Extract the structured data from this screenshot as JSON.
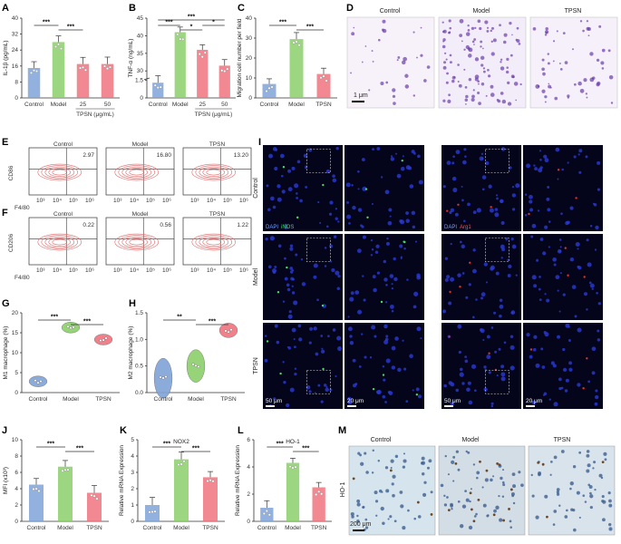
{
  "colors": {
    "blue": "#7fa3d8",
    "green": "#8ccf6a",
    "red": "#f0737e",
    "dark": "#1a1a1a"
  },
  "panels": {
    "A": "A",
    "B": "B",
    "C": "C",
    "D": "D",
    "E": "E",
    "F": "F",
    "G": "G",
    "H": "H",
    "I": "I",
    "J": "J",
    "K": "K",
    "L": "L",
    "M": "M"
  },
  "chart_data": [
    {
      "id": "A",
      "type": "bar",
      "ylabel": "IL-1β (pg/mL)",
      "ylim": [
        0,
        40
      ],
      "yticks": [
        "0",
        "8",
        "16",
        "24",
        "32",
        "40"
      ],
      "categories": [
        "Control",
        "Model",
        "25",
        "50"
      ],
      "values": [
        15,
        28,
        17,
        17
      ],
      "xgroup_label": "TPSN (μg/mL)",
      "sig": [
        "***",
        "***"
      ]
    },
    {
      "id": "B",
      "type": "bar",
      "ylabel": "TNF-α (ng/mL)",
      "yticks": [
        "0",
        "1.5",
        "30",
        "35",
        "40",
        "45"
      ],
      "categories": [
        "Control",
        "Model",
        "25",
        "50"
      ],
      "values": [
        1.3,
        41,
        36,
        31.5
      ],
      "xgroup_label": "TPSN (μg/mL)",
      "sig": [
        "***",
        "*",
        "*",
        "***"
      ]
    },
    {
      "id": "C",
      "type": "bar",
      "ylabel": "Migration cell number per field",
      "ylim": [
        0,
        40
      ],
      "yticks": [
        "0",
        "10",
        "20",
        "30",
        "40"
      ],
      "categories": [
        "Control",
        "Model",
        "TPSN"
      ],
      "values": [
        7,
        29.5,
        12
      ],
      "sig": [
        "***",
        "***"
      ]
    },
    {
      "id": "G",
      "type": "violin",
      "ylabel": "M1 macrophage (%)",
      "ylim": [
        0,
        20
      ],
      "yticks": [
        "0",
        "5",
        "10",
        "15",
        "20"
      ],
      "categories": [
        "Control",
        "Model",
        "TPSN"
      ],
      "values": [
        2.8,
        16.3,
        13.3
      ],
      "sig": [
        "***",
        "***"
      ]
    },
    {
      "id": "H",
      "type": "violin",
      "ylabel": "M2 macrophage (%)",
      "ylim": [
        0,
        1.5
      ],
      "yticks": [
        "0.0",
        "0.5",
        "1.0",
        "1.5"
      ],
      "categories": [
        "Control",
        "Model",
        "TPSN"
      ],
      "values": [
        0.27,
        0.5,
        1.17
      ],
      "sig": [
        "**",
        "***"
      ]
    },
    {
      "id": "J",
      "type": "bar",
      "ylabel": "MFI (x10³)",
      "ylim": [
        0,
        10
      ],
      "yticks": [
        "0",
        "2",
        "4",
        "6",
        "8",
        "10"
      ],
      "categories": [
        "Control",
        "Model",
        "TPSN"
      ],
      "values": [
        4.5,
        6.7,
        3.5
      ],
      "sig": [
        "***",
        "***"
      ]
    },
    {
      "id": "K",
      "type": "bar",
      "title": "NOX2",
      "ylabel": "Relative mRNA Expression",
      "ylim": [
        0,
        5
      ],
      "yticks": [
        "0",
        "1",
        "2",
        "3",
        "4",
        "5"
      ],
      "categories": [
        "Control",
        "Model",
        "TPSN"
      ],
      "values": [
        1.0,
        3.8,
        2.7
      ],
      "sig": [
        "***",
        "***"
      ]
    },
    {
      "id": "L",
      "type": "bar",
      "title": "HO-1",
      "ylabel": "Relative mRNA Expression",
      "ylim": [
        0,
        6
      ],
      "yticks": [
        "0",
        "2",
        "4",
        "6"
      ],
      "categories": [
        "Control",
        "Model",
        "TPSN"
      ],
      "values": [
        1.0,
        4.3,
        2.5
      ],
      "sig": [
        "***",
        "***"
      ]
    }
  ],
  "flow": {
    "E": {
      "ylabel": "CD86",
      "xlabel": "F4/80",
      "titles": [
        "Control",
        "Model",
        "TPSN"
      ],
      "values": [
        "2.97",
        "16.80",
        "13.20"
      ],
      "ticks": [
        "10³",
        "10⁴",
        "10⁵",
        "10⁶"
      ]
    },
    "F": {
      "ylabel": "CD206",
      "xlabel": "F4/80",
      "titles": [
        "Control",
        "Model",
        "TPSN"
      ],
      "values": [
        "0.22",
        "0.56",
        "1.22"
      ],
      "ticks": [
        "10³",
        "10⁴",
        "10⁵",
        "10⁶"
      ]
    }
  },
  "micro_D": {
    "titles": [
      "Control",
      "Model",
      "TPSN"
    ],
    "scale": "1 μm"
  },
  "micro_I": {
    "rows": [
      "Control",
      "Model",
      "TPSN"
    ],
    "legend_left": [
      "DAPI",
      "iNOS"
    ],
    "legend_right": [
      "DAPI",
      "Arg1"
    ],
    "scale_big": "50 μm",
    "scale_small": "20 μm"
  },
  "micro_M": {
    "titles": [
      "Control",
      "Model",
      "TPSN"
    ],
    "side": "HO-1",
    "scale": "200 μm"
  }
}
